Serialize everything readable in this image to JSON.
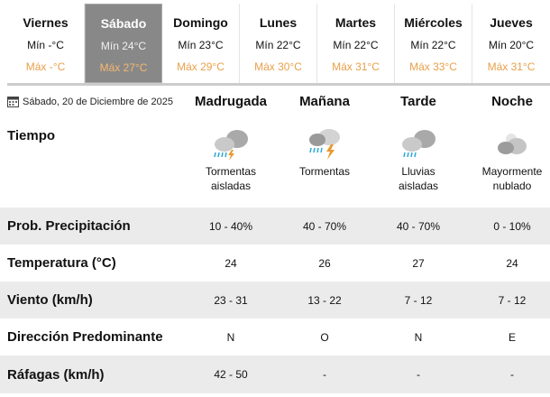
{
  "days": [
    {
      "day": "Viernes",
      "min": "Mín -°C",
      "max": "Máx -°C"
    },
    {
      "day": "Sábado",
      "min": "Mín 24°C",
      "max": "Máx 27°C",
      "active": true
    },
    {
      "day": "Domingo",
      "min": "Mín 23°C",
      "max": "Máx 29°C"
    },
    {
      "day": "Lunes",
      "min": "Mín 22°C",
      "max": "Máx 30°C"
    },
    {
      "day": "Martes",
      "min": "Mín 22°C",
      "max": "Máx 31°C"
    },
    {
      "day": "Miércoles",
      "min": "Mín 22°C",
      "max": "Máx 33°C"
    },
    {
      "day": "Jueves",
      "min": "Mín 20°C",
      "max": "Máx 31°C"
    }
  ],
  "date": "Sábado, 20 de Diciembre de 2025",
  "periods": [
    "Madrugada",
    "Mañana",
    "Tarde",
    "Noche"
  ],
  "tiempo": {
    "label": "Tiempo",
    "items": [
      {
        "icon": "isolated-thunderstorm-icon",
        "l1": "Tormentas",
        "l2": "aisladas"
      },
      {
        "icon": "thunderstorm-icon",
        "l1": "Tormentas",
        "l2": ""
      },
      {
        "icon": "isolated-rain-icon",
        "l1": "Lluvias",
        "l2": "aisladas"
      },
      {
        "icon": "mostly-cloudy-night-icon",
        "l1": "Mayormente",
        "l2": "nublado"
      }
    ]
  },
  "rows": [
    {
      "label": "Prob. Precipitación",
      "values": [
        "10 - 40%",
        "40 - 70%",
        "40 - 70%",
        "0 - 10%"
      ]
    },
    {
      "label": "Temperatura (°C)",
      "values": [
        "24",
        "26",
        "27",
        "24"
      ]
    },
    {
      "label": "Viento (km/h)",
      "values": [
        "23 - 31",
        "13 - 22",
        "7 - 12",
        "7 - 12"
      ]
    },
    {
      "label": "Dirección Predominante",
      "values": [
        "N",
        "O",
        "N",
        "E"
      ]
    },
    {
      "label": "Ráfagas (km/h)",
      "values": [
        "42 - 50",
        "-",
        "-",
        "-"
      ]
    }
  ],
  "colors": {
    "max_temp": "#e8a04a",
    "active_tab": "#888888",
    "row_alt": "#ebebeb"
  }
}
